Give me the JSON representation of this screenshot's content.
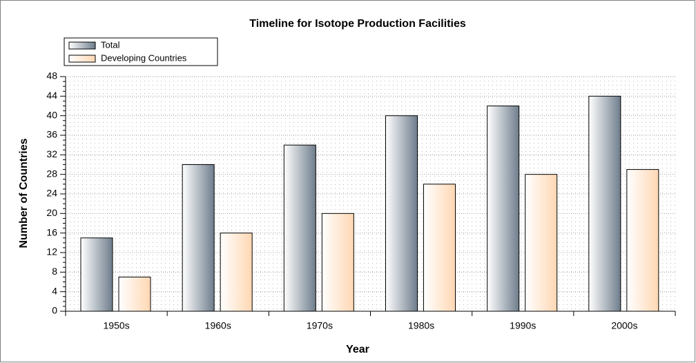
{
  "chart_data": {
    "type": "bar",
    "title": "Timeline for Isotope Production Facilities",
    "x_label": "Year",
    "y_label": "Number of Countries",
    "categories": [
      "1950s",
      "1960s",
      "1970s",
      "1980s",
      "1990s",
      "2000s"
    ],
    "series": [
      {
        "name": "Total",
        "color": "#6e7d8c",
        "values": [
          15,
          30,
          34,
          40,
          42,
          44
        ]
      },
      {
        "name": "Developing Countries",
        "color": "#ffd7b3",
        "values": [
          7,
          16,
          20,
          26,
          28,
          29
        ]
      }
    ],
    "ylim": [
      0,
      48
    ],
    "yticks": [
      0,
      4,
      8,
      12,
      16,
      20,
      24,
      28,
      32,
      36,
      40,
      44,
      48
    ],
    "grid": true,
    "legend": "top-left"
  }
}
